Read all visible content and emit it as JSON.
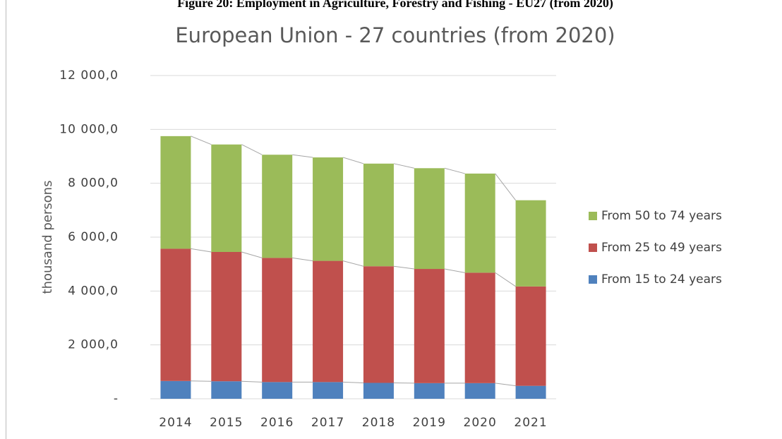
{
  "caption": "Figure 20: Employment in Agriculture, Forestry and Fishing - EU27 (from 2020)",
  "chart_data": {
    "type": "stacked-bar",
    "title": "European Union - 27 countries (from 2020)",
    "y_label": "thousand persons",
    "categories": [
      "2014",
      "2015",
      "2016",
      "2017",
      "2018",
      "2019",
      "2020",
      "2021"
    ],
    "series": [
      {
        "name": "From 15 to 24 years",
        "color": "#4f81bd",
        "values": [
          660,
          650,
          620,
          620,
          590,
          580,
          580,
          480
        ]
      },
      {
        "name": "From 25 to 49 years",
        "color": "#c0504d",
        "values": [
          4910,
          4800,
          4610,
          4500,
          4330,
          4240,
          4100,
          3690
        ]
      },
      {
        "name": "From 50 to 74 years",
        "color": "#9bbb59",
        "values": [
          4180,
          3990,
          3830,
          3840,
          3810,
          3740,
          3680,
          3200
        ]
      }
    ],
    "ylim": [
      0,
      12000
    ],
    "yticks": [
      {
        "value": 0,
        "label": "-"
      },
      {
        "value": 2000,
        "label": "2 000,0"
      },
      {
        "value": 4000,
        "label": "4 000,0"
      },
      {
        "value": 6000,
        "label": "6 000,0"
      },
      {
        "value": 8000,
        "label": "8 000,0"
      },
      {
        "value": 10000,
        "label": "10 000,0"
      },
      {
        "value": 12000,
        "label": "12 000,0"
      }
    ],
    "grid": true,
    "legend": "right"
  }
}
